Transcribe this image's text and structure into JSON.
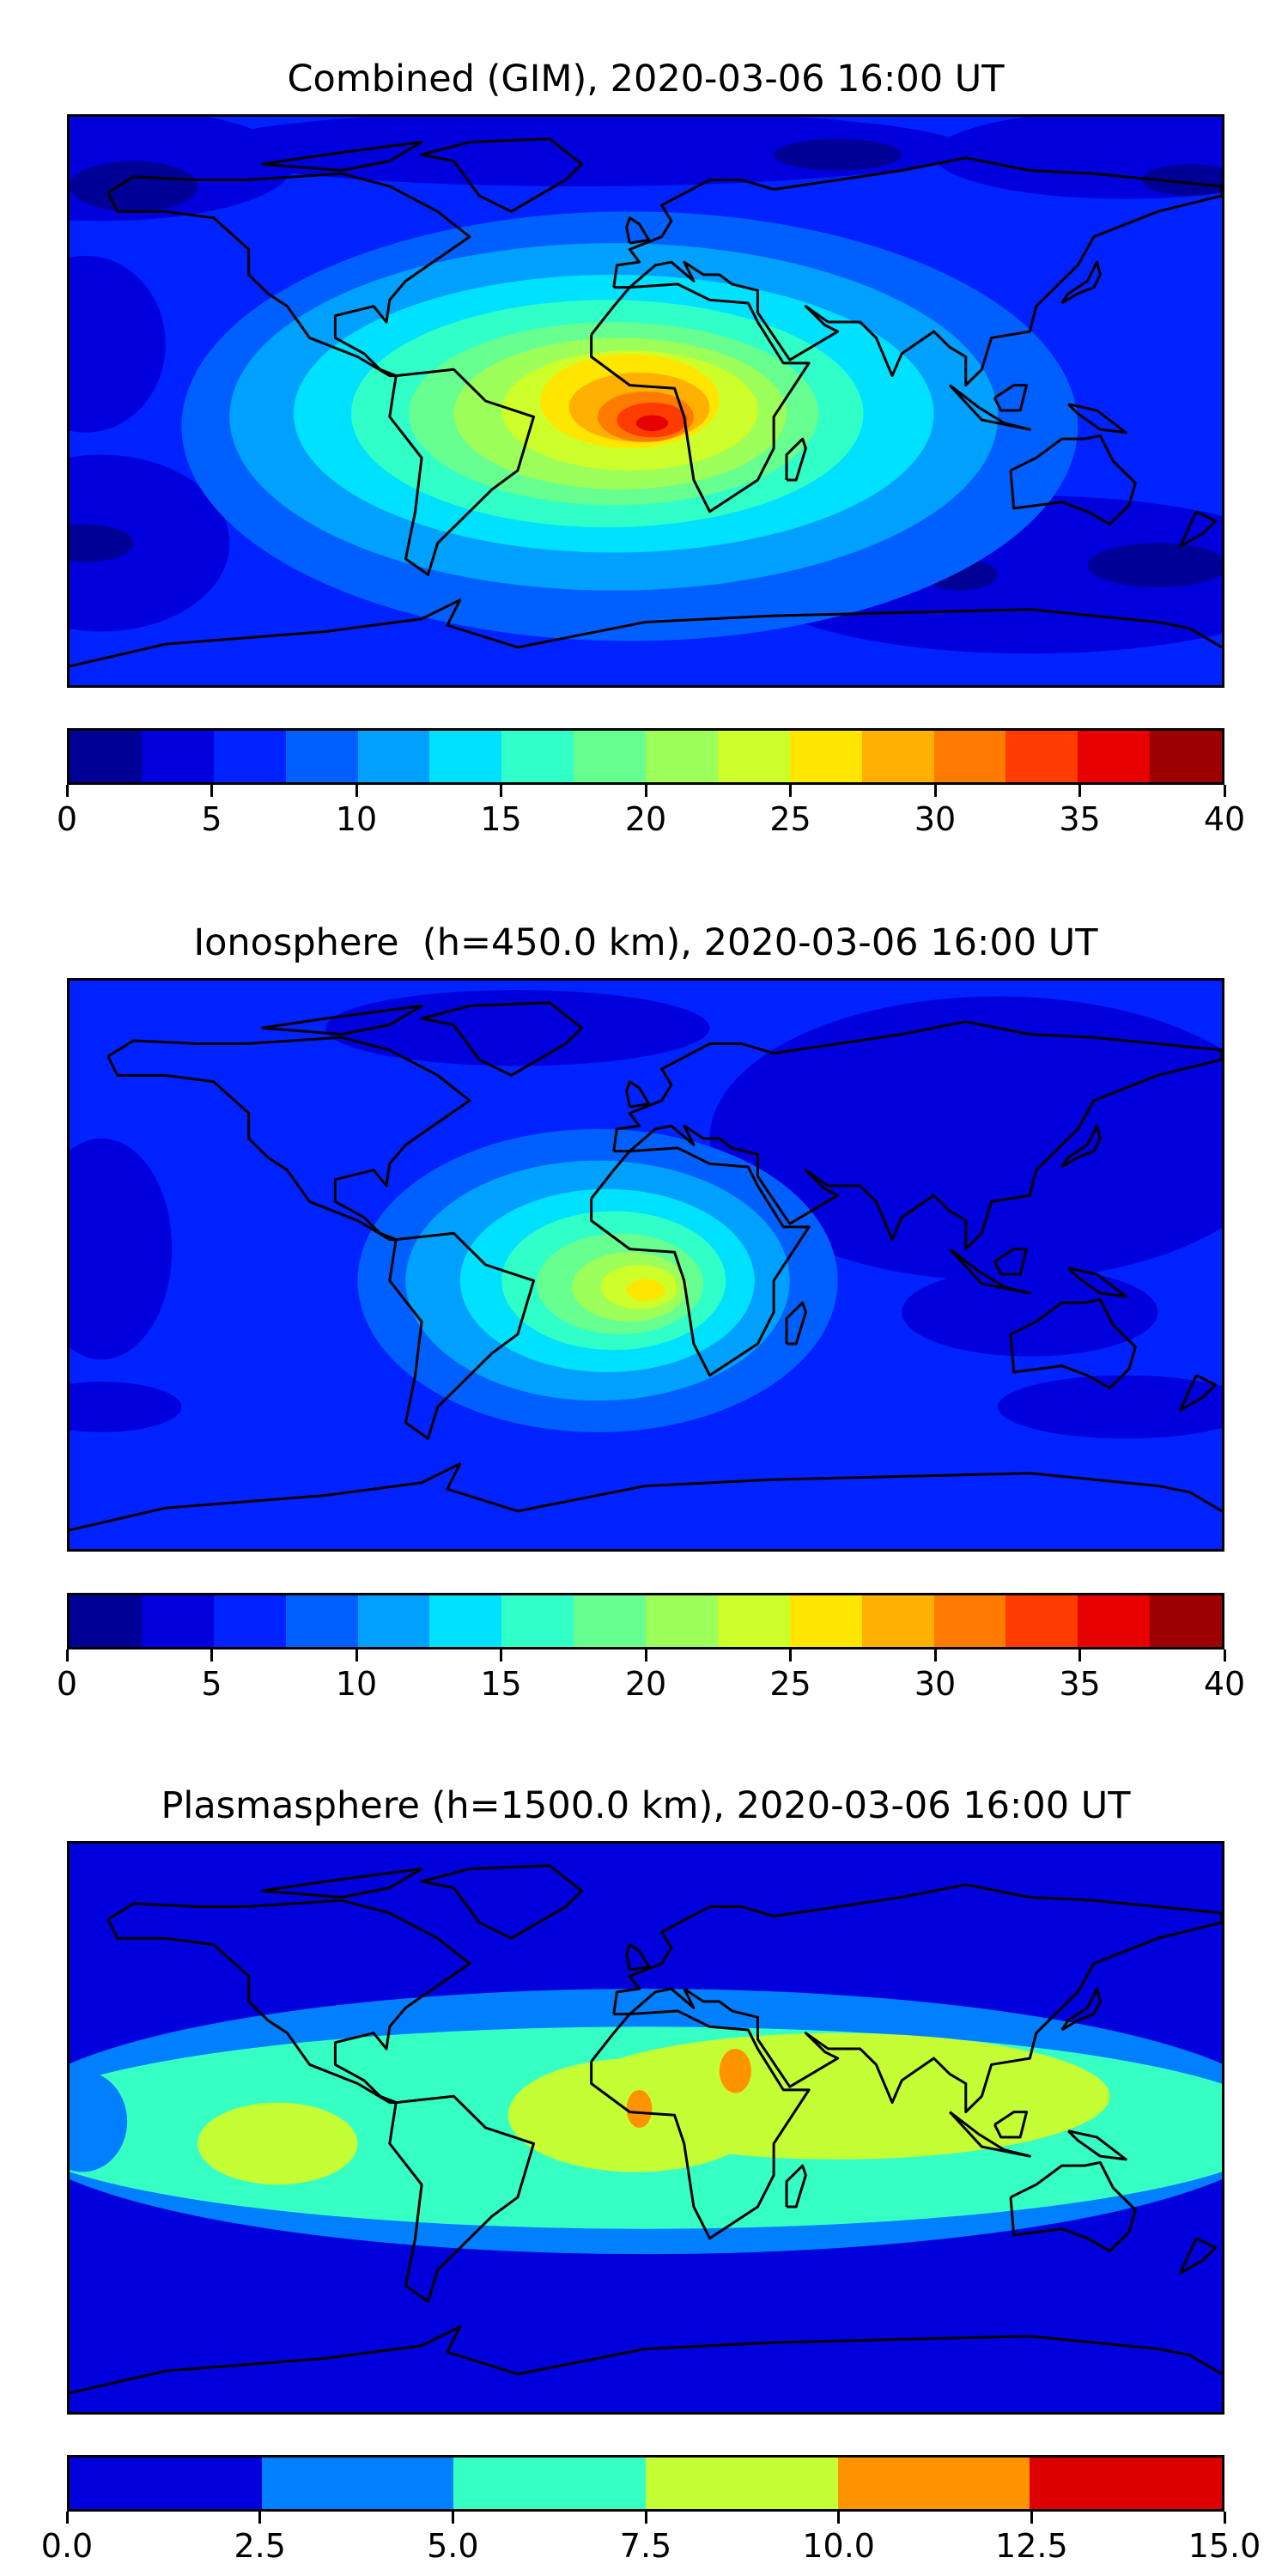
{
  "chart_data": [
    {
      "type": "heatmap",
      "title": "Combined (GIM), 2020-03-06 16:00 UT",
      "subtype": "filled contour map (world)",
      "colorbar": {
        "ticks": [
          "0",
          "5",
          "10",
          "15",
          "20",
          "25",
          "30",
          "35",
          "40"
        ],
        "range": [
          0,
          40
        ],
        "levels": [
          0,
          2.5,
          5,
          7.5,
          10,
          12.5,
          15,
          17.5,
          20,
          22.5,
          25,
          27.5,
          30,
          32.5,
          35,
          37.5,
          40
        ]
      },
      "colors": [
        "#000096",
        "#0000dc",
        "#0022ff",
        "#0060ff",
        "#00a0ff",
        "#00e0ff",
        "#30ffc8",
        "#66ff90",
        "#9cff5a",
        "#cdff2a",
        "#ffe600",
        "#ffb000",
        "#ff7a00",
        "#ff3c00",
        "#e60000",
        "#9c0000"
      ],
      "peak": {
        "approx_value": 36,
        "location": "central Africa / Gulf of Guinea"
      }
    },
    {
      "type": "heatmap",
      "title": "Ionosphere  (h=450.0 km), 2020-03-06 16:00 UT",
      "subtype": "filled contour map (world)",
      "colorbar": {
        "ticks": [
          "0",
          "5",
          "10",
          "15",
          "20",
          "25",
          "30",
          "35",
          "40"
        ],
        "range": [
          0,
          40
        ],
        "levels": [
          0,
          2.5,
          5,
          7.5,
          10,
          12.5,
          15,
          17.5,
          20,
          22.5,
          25,
          27.5,
          30,
          32.5,
          35,
          37.5,
          40
        ]
      },
      "colors": [
        "#000096",
        "#0000dc",
        "#0022ff",
        "#0060ff",
        "#00a0ff",
        "#00e0ff",
        "#30ffc8",
        "#66ff90",
        "#9cff5a",
        "#cdff2a",
        "#ffe600",
        "#ffb000",
        "#ff7a00",
        "#ff3c00",
        "#e60000",
        "#9c0000"
      ],
      "peak": {
        "approx_value": 26,
        "location": "central Africa / South Atlantic"
      }
    },
    {
      "type": "heatmap",
      "title": "Plasmasphere (h=1500.0 km), 2020-03-06 16:00 UT",
      "subtype": "filled contour map (world)",
      "colorbar": {
        "ticks": [
          "0.0",
          "2.5",
          "5.0",
          "7.5",
          "10.0",
          "12.5",
          "15.0"
        ],
        "range": [
          0,
          15
        ],
        "levels": [
          0,
          2.5,
          5,
          7.5,
          10,
          12.5,
          15
        ]
      },
      "colors": [
        "#0000dc",
        "#0080ff",
        "#36ffc4",
        "#c4ff36",
        "#ff9400",
        "#dc0000"
      ],
      "peak": {
        "approx_value": 10.5,
        "location": "West Africa and Sudan"
      }
    }
  ]
}
